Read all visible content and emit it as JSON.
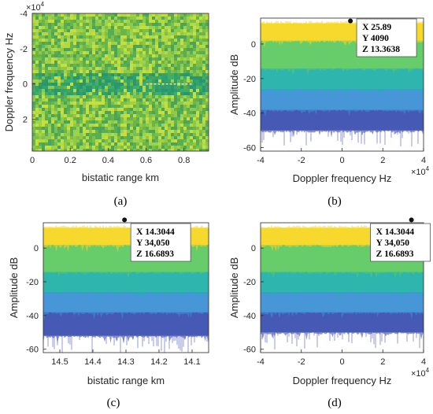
{
  "colors": {
    "yellow": "#f7d51f",
    "green": "#5ec962",
    "teal": "#21b0a8",
    "blue": "#3a8fd6",
    "purple": "#3b4fb0",
    "axis": "#262626"
  },
  "chart_data": [
    {
      "panel": "a",
      "type": "heatmap",
      "panel_label": "(a)",
      "xlabel": "bistatic range km",
      "ylabel": "Doppler frequency Hz",
      "y_multiplier": "×10^4",
      "x_ticks": [
        "0",
        "0.2",
        "0.4",
        "0.6",
        "0.8"
      ],
      "x_tick_values": [
        0,
        0.2,
        0.4,
        0.6,
        0.8
      ],
      "xlim": [
        0,
        0.93
      ],
      "y_ticks": [
        "-4",
        "-2",
        "0",
        "2"
      ],
      "y_tick_values": [
        -4,
        -2,
        0,
        2
      ],
      "ylim": [
        -4,
        3.8
      ],
      "y_reversed": true,
      "colorscale": "green noise, darker band near 0 Hz"
    },
    {
      "panel": "b",
      "type": "area",
      "panel_label": "(b)",
      "xlabel": "Doppler frequency Hz",
      "ylabel": "Amplitude dB",
      "x_multiplier": "×10^4",
      "x_ticks": [
        "-4",
        "-2",
        "0",
        "2",
        "4"
      ],
      "x_tick_values": [
        -4,
        -2,
        0,
        2,
        4
      ],
      "xlim": [
        -4,
        4
      ],
      "y_ticks": [
        "0",
        "-20",
        "-40",
        "-60"
      ],
      "y_tick_values": [
        0,
        -20,
        -40,
        -60
      ],
      "ylim": [
        -62,
        15
      ],
      "datatip": {
        "x": 0.409,
        "y": 13.3638,
        "lines": [
          "X 25.89",
          "Y 4090",
          "Z 13.3638"
        ]
      },
      "series": [
        {
          "color": "yellow",
          "top": 12,
          "bottom": 2
        },
        {
          "color": "green",
          "top": 2,
          "bottom": -14
        },
        {
          "color": "teal",
          "top": -14,
          "bottom": -26
        },
        {
          "color": "blue",
          "top": -26,
          "bottom": -38
        },
        {
          "color": "purple",
          "top": -38,
          "bottom": -50
        }
      ]
    },
    {
      "panel": "c",
      "type": "area",
      "panel_label": "(c)",
      "xlabel": "bistatic range km",
      "ylabel": "Amplitude dB",
      "x_ticks": [
        "14.5",
        "14.4",
        "14.3",
        "14.2",
        "14.1"
      ],
      "x_tick_values": [
        14.5,
        14.4,
        14.3,
        14.2,
        14.1
      ],
      "xlim": [
        14.55,
        14.05
      ],
      "y_ticks": [
        "0",
        "-20",
        "-40",
        "-60"
      ],
      "y_tick_values": [
        0,
        -20,
        -40,
        -60
      ],
      "ylim": [
        -62,
        15
      ],
      "datatip": {
        "x": 14.3044,
        "y": 16.6893,
        "lines": [
          "X 14.3044",
          "Y 34,050",
          "Z 16.6893"
        ]
      },
      "series": [
        {
          "color": "yellow",
          "top": 12,
          "bottom": 2
        },
        {
          "color": "green",
          "top": 2,
          "bottom": -14
        },
        {
          "color": "teal",
          "top": -14,
          "bottom": -26
        },
        {
          "color": "blue",
          "top": -26,
          "bottom": -38
        },
        {
          "color": "purple",
          "top": -38,
          "bottom": -52
        }
      ]
    },
    {
      "panel": "d",
      "type": "area",
      "panel_label": "(d)",
      "xlabel": "Doppler frequency Hz",
      "ylabel": "Amplitude dB",
      "x_multiplier": "×10^4",
      "x_ticks": [
        "-4",
        "-2",
        "0",
        "2",
        "4"
      ],
      "x_tick_values": [
        -4,
        -2,
        0,
        2,
        4
      ],
      "xlim": [
        -4,
        4
      ],
      "y_ticks": [
        "0",
        "-20",
        "-40",
        "-60"
      ],
      "y_tick_values": [
        0,
        -20,
        -40,
        -60
      ],
      "ylim": [
        -62,
        15
      ],
      "datatip": {
        "x": 3.405,
        "y": 16.6893,
        "lines": [
          "X 14.3044",
          "Y 34,050",
          "Z 16.6893"
        ]
      },
      "series": [
        {
          "color": "yellow",
          "top": 12,
          "bottom": 2
        },
        {
          "color": "green",
          "top": 2,
          "bottom": -14
        },
        {
          "color": "teal",
          "top": -14,
          "bottom": -26
        },
        {
          "color": "blue",
          "top": -26,
          "bottom": -38
        },
        {
          "color": "purple",
          "top": -38,
          "bottom": -50
        }
      ]
    }
  ]
}
